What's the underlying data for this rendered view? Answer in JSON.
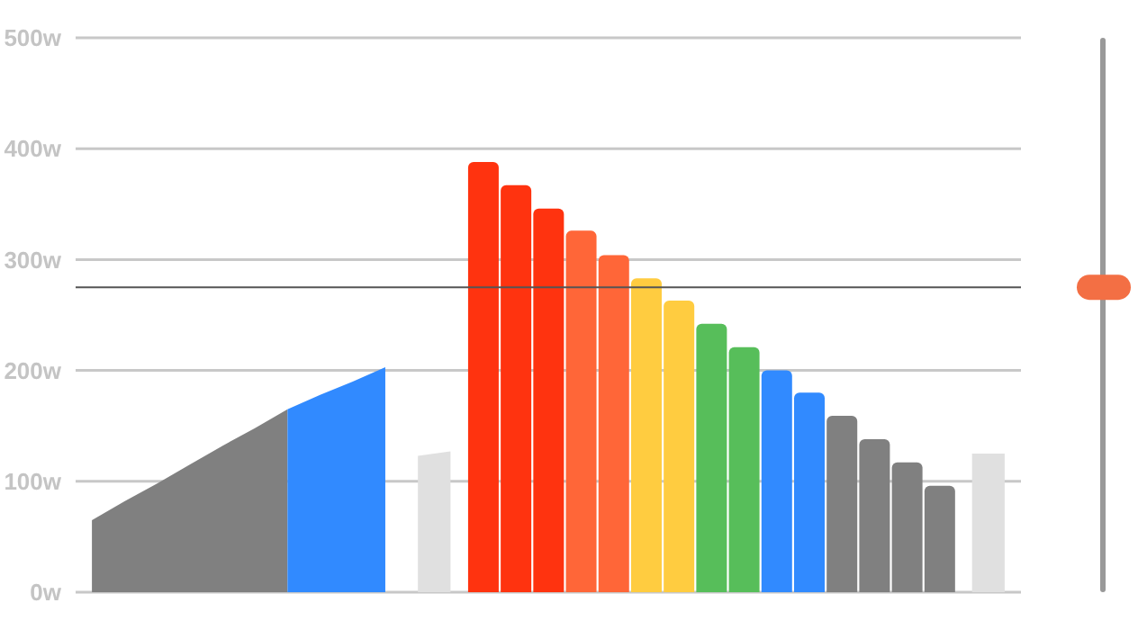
{
  "chart_data": {
    "type": "bar",
    "categories": [
      null,
      null,
      null,
      null,
      null,
      null,
      null,
      null,
      null,
      null,
      null,
      null,
      null,
      null,
      null,
      null,
      null,
      null,
      null,
      null,
      null,
      null,
      null,
      null,
      null,
      null,
      null,
      null,
      null
    ],
    "series": [
      {
        "type": "area",
        "color": "#808080",
        "values": [
          65,
          82,
          98,
          115,
          132,
          148,
          165,
          null,
          null,
          null,
          null,
          null,
          null,
          null,
          null,
          null,
          null,
          null,
          null,
          null,
          null,
          null,
          null,
          null,
          null,
          null,
          null,
          null,
          null
        ]
      },
      {
        "type": "area",
        "color": "#318aff",
        "values": [
          null,
          null,
          null,
          null,
          null,
          null,
          165,
          178,
          190,
          203,
          null,
          null,
          null,
          null,
          null,
          null,
          null,
          null,
          null,
          null,
          null,
          null,
          null,
          null,
          null,
          null,
          null,
          null,
          null
        ]
      },
      {
        "type": "area",
        "color": "#e0e0e0",
        "values": [
          null,
          null,
          null,
          null,
          null,
          null,
          null,
          null,
          null,
          null,
          123,
          127,
          null,
          null,
          null,
          null,
          null,
          null,
          null,
          null,
          null,
          null,
          null,
          null,
          null,
          null,
          null,
          null,
          null
        ]
      },
      {
        "values": [
          null,
          null,
          null,
          null,
          null,
          null,
          null,
          null,
          null,
          null,
          null,
          null,
          388,
          367,
          346,
          326,
          304,
          283,
          263,
          242,
          221,
          200,
          180,
          159,
          138,
          117,
          96,
          null,
          null
        ],
        "colors": [
          "#808080",
          "#808080",
          "#808080",
          "#808080",
          "#808080",
          "#808080",
          "#808080",
          "#808080",
          "#808080",
          "#808080",
          "#808080",
          "#808080",
          "#ff330f",
          "#ff330f",
          "#ff330f",
          "#ff6638",
          "#ff6638",
          "#ffcc40",
          "#ffcc40",
          "#57be5a",
          "#57be5a",
          "#318aff",
          "#318aff",
          "#808080",
          "#808080",
          "#808080",
          "#808080",
          "#808080",
          "#808080"
        ]
      },
      {
        "type": "area",
        "color": "#e0e0e0",
        "values": [
          null,
          null,
          null,
          null,
          null,
          null,
          null,
          null,
          null,
          null,
          null,
          null,
          null,
          null,
          null,
          null,
          null,
          null,
          null,
          null,
          null,
          null,
          null,
          null,
          null,
          null,
          null,
          125,
          125
        ]
      }
    ],
    "ylim": [
      0,
      500
    ],
    "yticks": [
      {
        "value": 0,
        "label": "0w"
      },
      {
        "value": 100,
        "label": "100w"
      },
      {
        "value": 200,
        "label": "200w"
      },
      {
        "value": 300,
        "label": "300w"
      },
      {
        "value": 400,
        "label": "400w"
      },
      {
        "value": 500,
        "label": "500w"
      }
    ],
    "grid": "y",
    "tick_labels": "y",
    "ref_lines": [
      {
        "axis": "y",
        "value": 275,
        "color": "#555555"
      }
    ]
  }
}
